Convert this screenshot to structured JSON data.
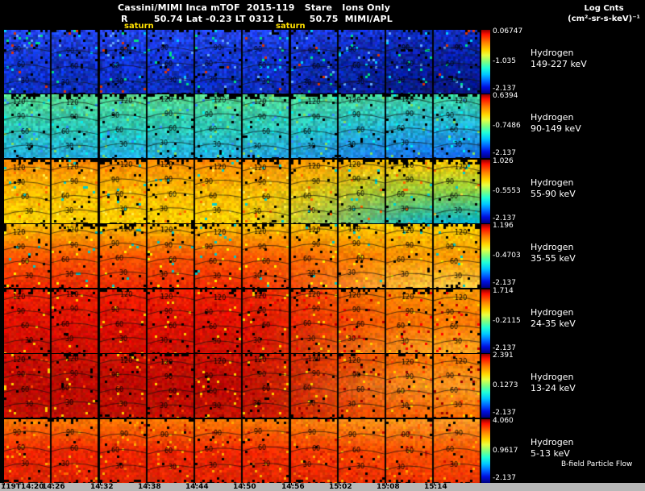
{
  "header": {
    "line1": "Cassini/MIMI Inca mTOF  2015-119   Stare   Ions Only",
    "line2": "R        50.74 Lat -0.23 LT 0312 L        50.75  MIMI/APL",
    "saturn_left": "saturn",
    "saturn_right": "saturn",
    "units_line1": "Log Cnts",
    "units_line2": "(cm²-sr-s-keV)⁻¹"
  },
  "footer": {
    "bfield": "B-field Particle Flow"
  },
  "chart_data": {
    "type": "heatmap",
    "title": "Cassini/MIMI Inca mTOF 2015-119 Stare Ions Only",
    "position_line": "R 50.74 Lat -0.23 LT 0312 L 50.75 MIMI/APL",
    "instrument": "MIMI/APL",
    "colorbar_units": "Log Cnts (cm²-sr-s-keV)⁻¹",
    "colormap": "jet",
    "pitch_angle_contours_deg": [
      30,
      60,
      90,
      120
    ],
    "x_tick_labels": [
      "119T14:20",
      "14:26",
      "14:32",
      "14:38",
      "14:44",
      "14:50",
      "14:56",
      "15:02",
      "15:08",
      "15:14"
    ],
    "rows": [
      {
        "label1": "Hydrogen",
        "label2": "149-227 keV",
        "cbar_max": "0.06747",
        "cbar_mid": "-1.035",
        "cbar_min": "-2.137",
        "levels": [
          {
            "t": "90",
            "f": 0.3
          },
          {
            "t": "60",
            "f": 0.55
          },
          {
            "t": "30",
            "f": 0.8
          }
        ],
        "paint": {
          "left": [
            "#2244ee",
            "#1133cc",
            "#0d2cb8"
          ],
          "right": [
            "#0f2cc0",
            "#081e9a",
            "#061680"
          ],
          "noise": 0.55,
          "speckle": 0.05,
          "speckle_colors": [
            "#00ccff",
            "#00e088",
            "#66aaff",
            "#001060",
            "#dd3300"
          ],
          "black_top": 0.14,
          "black_bot": 0.1,
          "black_p": 0.03
        }
      },
      {
        "label1": "Hydrogen",
        "label2": "90-149 keV",
        "cbar_max": "0.6394",
        "cbar_mid": "-0.7486",
        "cbar_min": "-2.137",
        "levels": [
          {
            "t": "120",
            "f": 0.1
          },
          {
            "t": "90",
            "f": 0.33
          },
          {
            "t": "60",
            "f": 0.56
          },
          {
            "t": "30",
            "f": 0.79
          }
        ],
        "paint": {
          "left": [
            "#55d890",
            "#2cc8b4",
            "#22aadd"
          ],
          "right": [
            "#3cd0a0",
            "#22b0d8",
            "#1668e8"
          ],
          "noise": 0.3,
          "speckle": 0.04,
          "speckle_colors": [
            "#80e060",
            "#00f0f0",
            "#3090ff"
          ],
          "black_top": 0.5,
          "black_bot": 0.14,
          "black_p": 0.02
        }
      },
      {
        "label1": "Hydrogen",
        "label2": "55-90 keV",
        "cbar_max": "1.026",
        "cbar_mid": "-0.5553",
        "cbar_min": "-2.137",
        "levels": [
          {
            "t": "120",
            "f": 0.1
          },
          {
            "t": "90",
            "f": 0.33
          },
          {
            "t": "60",
            "f": 0.56
          },
          {
            "t": "30",
            "f": 0.79
          }
        ],
        "paint": {
          "left": [
            "#ff8800",
            "#ffbb00",
            "#ffd000"
          ],
          "right": [
            "#ffcc00",
            "#88cc44",
            "#00b0cc"
          ],
          "noise": 0.25,
          "speckle": 0.04,
          "speckle_colors": [
            "#ff6600",
            "#ffee44",
            "#00d0d0"
          ],
          "black_top": 0.45,
          "black_bot": 0.2,
          "black_p": 0.02
        }
      },
      {
        "label1": "Hydrogen",
        "label2": "35-55 keV",
        "cbar_max": "1.196",
        "cbar_mid": "-0.4703",
        "cbar_min": "-2.137",
        "levels": [
          {
            "t": "120",
            "f": 0.1
          },
          {
            "t": "90",
            "f": 0.33
          },
          {
            "t": "60",
            "f": 0.56
          },
          {
            "t": "30",
            "f": 0.79
          }
        ],
        "paint": {
          "left": [
            "#ffbb00",
            "#ff5500",
            "#ee2a00"
          ],
          "right": [
            "#ffcc00",
            "#ff9900",
            "#ffcc44"
          ],
          "noise": 0.22,
          "speckle": 0.035,
          "speckle_colors": [
            "#ffee00",
            "#ff7700",
            "#00c8c8"
          ],
          "black_top": 0.35,
          "black_bot": 0.15,
          "black_p": 0.02
        }
      },
      {
        "label1": "Hydrogen",
        "label2": "24-35 keV",
        "cbar_max": "1.714",
        "cbar_mid": "-0.2115",
        "cbar_min": "-2.137",
        "levels": [
          {
            "t": "120",
            "f": 0.1
          },
          {
            "t": "90",
            "f": 0.33
          },
          {
            "t": "60",
            "f": 0.56
          },
          {
            "t": "30",
            "f": 0.79
          }
        ],
        "paint": {
          "left": [
            "#ee2200",
            "#dd1100",
            "#cc0f00"
          ],
          "right": [
            "#ff9900",
            "#ff7700",
            "#ffaa22"
          ],
          "noise": 0.2,
          "speckle": 0.04,
          "speckle_colors": [
            "#ff0000",
            "#ffcc00",
            "#bb0000"
          ],
          "black_top": 0.25,
          "black_bot": 0.12,
          "black_p": 0.015
        }
      },
      {
        "label1": "Hydrogen",
        "label2": "13-24 keV",
        "cbar_max": "2.391",
        "cbar_mid": "0.1273",
        "cbar_min": "-2.137",
        "levels": [
          {
            "t": "120",
            "f": 0.1
          },
          {
            "t": "90",
            "f": 0.33
          },
          {
            "t": "60",
            "f": 0.56
          },
          {
            "t": "30",
            "f": 0.79
          }
        ],
        "paint": {
          "left": [
            "#cc1100",
            "#bb0a00",
            "#c41200"
          ],
          "right": [
            "#ff7700",
            "#ff9922",
            "#ff6600"
          ],
          "noise": 0.22,
          "speckle": 0.05,
          "speckle_colors": [
            "#ff4400",
            "#ffcc00",
            "#990000"
          ],
          "black_top": 0.2,
          "black_bot": 0.2,
          "black_p": 0.015
        }
      },
      {
        "label1": "Hydrogen",
        "label2": "5-13 keV",
        "cbar_max": "4.060",
        "cbar_mid": "0.9617",
        "cbar_min": "-2.137",
        "levels": [
          {
            "t": "90",
            "f": 0.22
          },
          {
            "t": "60",
            "f": 0.47
          },
          {
            "t": "30",
            "f": 0.72
          }
        ],
        "paint": {
          "left": [
            "#ff7700",
            "#ee2600",
            "#dd2200"
          ],
          "right": [
            "#ff9922",
            "#ff5500",
            "#ee3300"
          ],
          "noise": 0.22,
          "speckle": 0.05,
          "speckle_colors": [
            "#ffaa00",
            "#cc1100",
            "#ff6600"
          ],
          "black_top": 0.15,
          "black_bot": 0.35,
          "black_p": 0.015
        }
      }
    ]
  }
}
